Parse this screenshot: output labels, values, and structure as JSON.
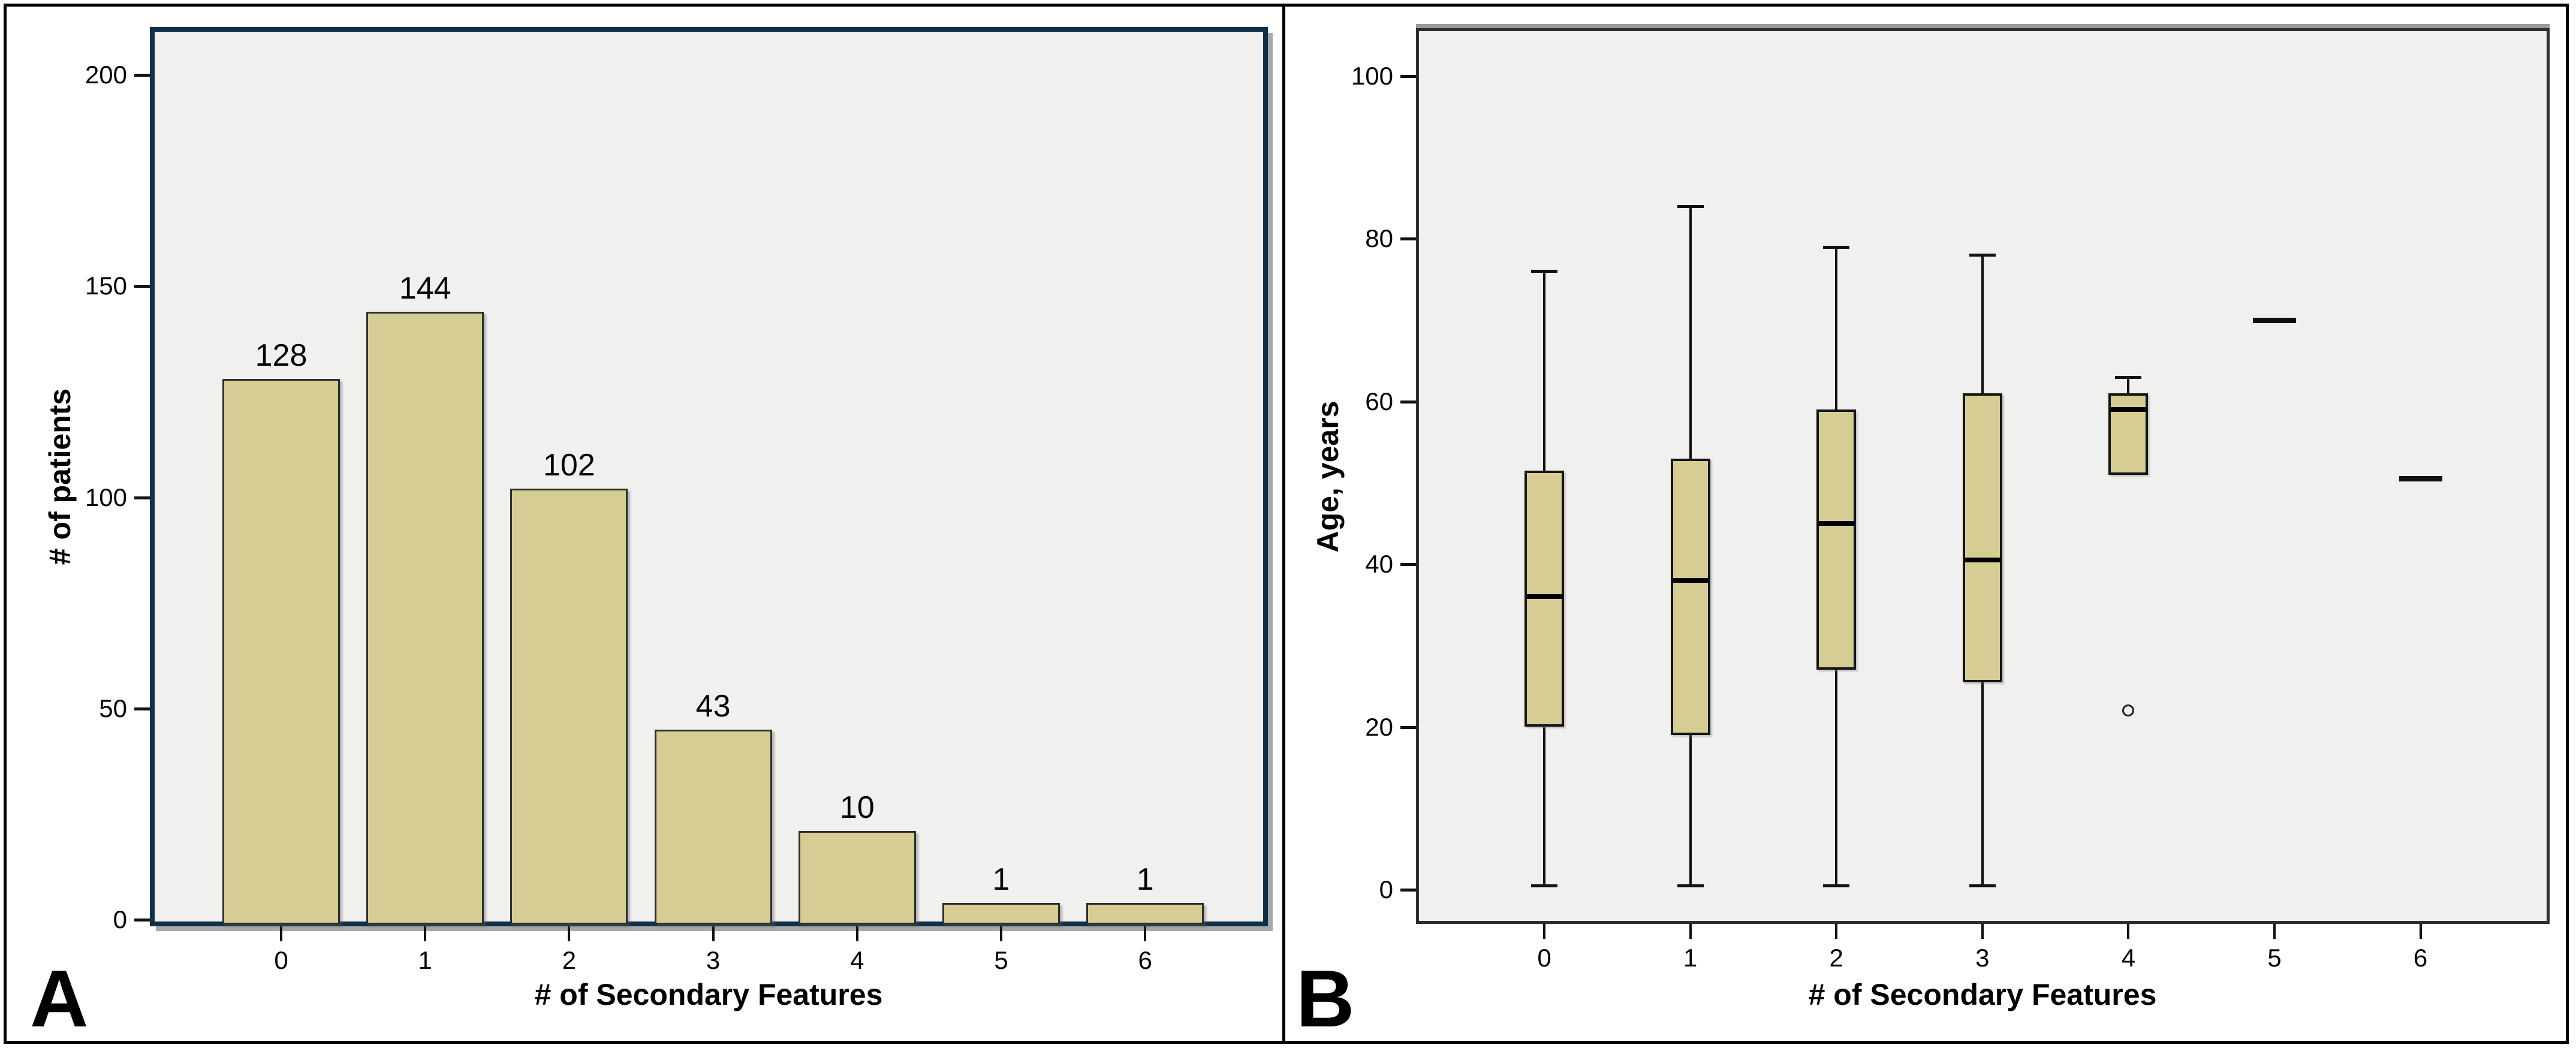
{
  "figure": {
    "panels": [
      {
        "letter": "A",
        "chart_index": 0
      },
      {
        "letter": "B",
        "chart_index": 1
      }
    ]
  },
  "colors": {
    "plot_background": "#f0f0ee",
    "fill_khaki": "#d5cd93",
    "bar_border": "#2e2e2e",
    "panel_a_plot_border": "#103049",
    "panel_b_plot_border": "#2e2e2e",
    "figure_border": "#000000",
    "text": "#000000"
  },
  "chart_data": [
    {
      "type": "bar",
      "panel": "A",
      "title": "",
      "xlabel": "# of Secondary Features",
      "ylabel": "# of patients",
      "categories": [
        "0",
        "1",
        "2",
        "3",
        "4",
        "5",
        "6"
      ],
      "values": [
        128,
        144,
        102,
        43,
        10,
        1,
        1
      ],
      "bar_labels": [
        "128",
        "144",
        "102",
        "43",
        "10",
        "1",
        "1"
      ],
      "display_heights": [
        128,
        144,
        102,
        45,
        21,
        4,
        4
      ],
      "yticks": [
        0,
        50,
        100,
        150,
        200
      ],
      "ylim": [
        0,
        211
      ],
      "grid": false,
      "legend": "none",
      "bar_fill": "#d5cd93",
      "plot_bg": "#f0f0ee"
    },
    {
      "type": "boxplot",
      "panel": "B",
      "title": "",
      "xlabel": "# of Secondary Features",
      "ylabel": "Age, years",
      "categories": [
        "0",
        "1",
        "2",
        "3",
        "4",
        "5",
        "6"
      ],
      "yticks": [
        0,
        20,
        40,
        60,
        80,
        100
      ],
      "ylim": [
        -4,
        106
      ],
      "grid": false,
      "legend": "none",
      "box_fill": "#d5cd93",
      "plot_bg": "#f0f0ee",
      "boxes": [
        {
          "category": "0",
          "whisker_low": 0.5,
          "q1": 20,
          "median": 36,
          "q3": 51.5,
          "whisker_high": 76
        },
        {
          "category": "1",
          "whisker_low": 0.5,
          "q1": 19,
          "median": 38,
          "q3": 53,
          "whisker_high": 84
        },
        {
          "category": "2",
          "whisker_low": 0.5,
          "q1": 27,
          "median": 45,
          "q3": 59,
          "whisker_high": 79
        },
        {
          "category": "3",
          "whisker_low": 0.5,
          "q1": 25.5,
          "median": 40.5,
          "q3": 61,
          "whisker_high": 78
        },
        {
          "category": "4",
          "q1": 51,
          "median": 59,
          "q3": 61,
          "whisker_high": 63,
          "outliers": [
            22
          ]
        },
        {
          "category": "5",
          "single_value": 70
        },
        {
          "category": "6",
          "single_value": 50.5
        }
      ]
    }
  ]
}
